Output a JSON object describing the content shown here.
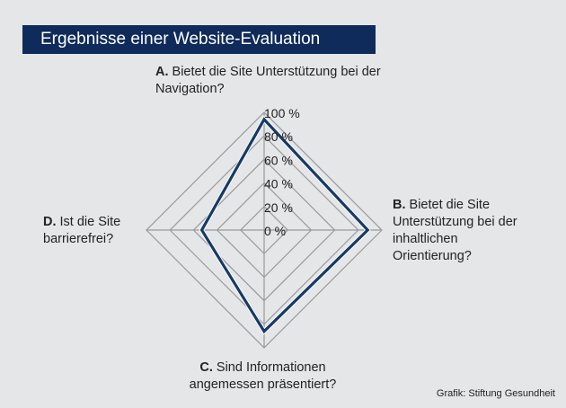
{
  "title": "Ergebnisse einer Website-Evaluation",
  "credit": "Grafik: Stiftung Gesundheit",
  "chart_data": {
    "type": "radar",
    "title": "Ergebnisse einer Website-Evaluation",
    "axes": [
      {
        "key": "A.",
        "label": "Bietet die Site Unterstützung bei der Navigation?"
      },
      {
        "key": "B.",
        "label": "Bietet die Site Unterstützung bei der inhaltlichen Orientierung?"
      },
      {
        "key": "C.",
        "label": "Sind Informationen angemessen präsentiert?"
      },
      {
        "key": "D.",
        "label": "Ist die Site barrierefrei?"
      }
    ],
    "values": [
      94,
      88,
      86,
      53
    ],
    "range": [
      0,
      100
    ],
    "ticks": [
      "0 %",
      "20 %",
      "40 %",
      "60 %",
      "80 %",
      "100 %"
    ],
    "grid": true,
    "line_color": "#173a66",
    "grid_color": "#9a9a9a"
  }
}
